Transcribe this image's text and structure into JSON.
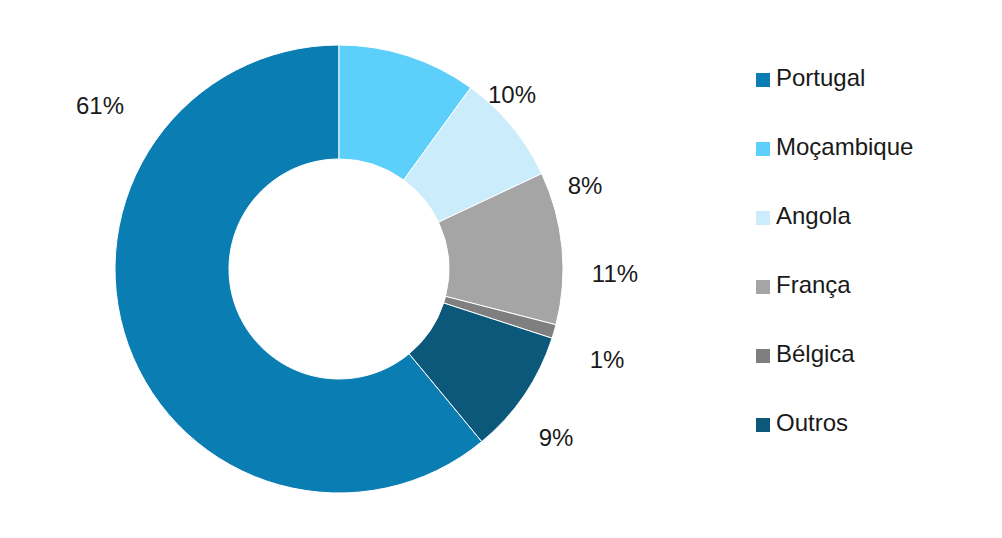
{
  "chart_data": {
    "type": "pie",
    "categories": [
      "Portugal",
      "Moçambique",
      "Angola",
      "França",
      "Bélgica",
      "Outros"
    ],
    "values": [
      61,
      10,
      8,
      11,
      1,
      9
    ],
    "value_labels": [
      "61%",
      "10%",
      "8%",
      "11%",
      "1%",
      "9%"
    ],
    "colors": [
      "#0a7db3",
      "#5ccffb",
      "#cbedfb",
      "#a5a5a5",
      "#7f7f7f",
      "#0b587a"
    ],
    "data_labels": true,
    "legend": "right"
  }
}
